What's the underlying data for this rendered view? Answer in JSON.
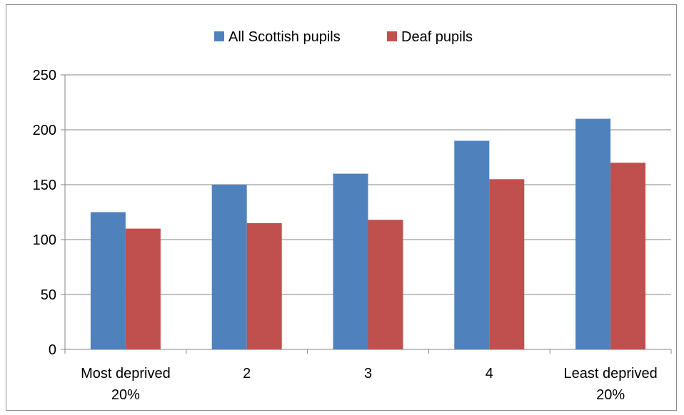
{
  "chart_data": {
    "type": "bar",
    "categories": [
      [
        "Most deprived",
        "20%"
      ],
      [
        "2"
      ],
      [
        "3"
      ],
      [
        "4"
      ],
      [
        "Least deprived",
        "20%"
      ]
    ],
    "series": [
      {
        "name": "All Scottish pupils",
        "color": "#4F81BD",
        "values": [
          125,
          150,
          160,
          190,
          210
        ]
      },
      {
        "name": "Deaf pupils",
        "color": "#C0504D",
        "values": [
          110,
          115,
          118,
          155,
          170
        ]
      }
    ],
    "ylim": [
      0,
      250
    ],
    "yticks": [
      0,
      50,
      100,
      150,
      200,
      250
    ],
    "grid": true,
    "legend_position": "top",
    "title": "",
    "xlabel": "",
    "ylabel": ""
  }
}
